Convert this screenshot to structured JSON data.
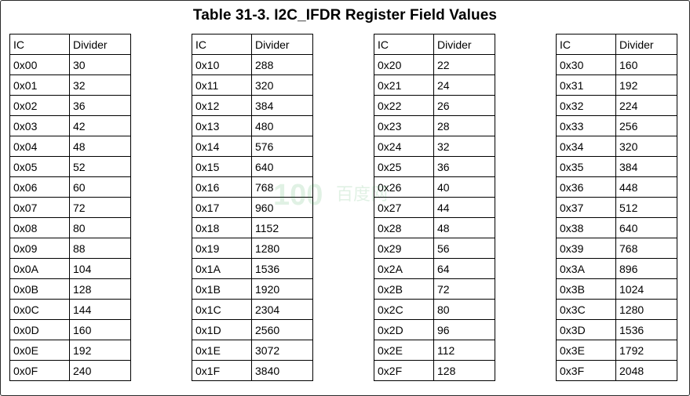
{
  "title": "Table 31-3.   I2C_IFDR Register Field Values",
  "headers": [
    "IC",
    "Divider"
  ],
  "columns": [
    {
      "rows": [
        [
          "0x00",
          "30"
        ],
        [
          "0x01",
          "32"
        ],
        [
          "0x02",
          "36"
        ],
        [
          "0x03",
          "42"
        ],
        [
          "0x04",
          "48"
        ],
        [
          "0x05",
          "52"
        ],
        [
          "0x06",
          "60"
        ],
        [
          "0x07",
          "72"
        ],
        [
          "0x08",
          "80"
        ],
        [
          "0x09",
          "88"
        ],
        [
          "0x0A",
          "104"
        ],
        [
          "0x0B",
          "128"
        ],
        [
          "0x0C",
          "144"
        ],
        [
          "0x0D",
          "160"
        ],
        [
          "0x0E",
          "192"
        ],
        [
          "0x0F",
          "240"
        ]
      ]
    },
    {
      "rows": [
        [
          "0x10",
          "288"
        ],
        [
          "0x11",
          "320"
        ],
        [
          "0x12",
          "384"
        ],
        [
          "0x13",
          "480"
        ],
        [
          "0x14",
          "576"
        ],
        [
          "0x15",
          "640"
        ],
        [
          "0x16",
          "768"
        ],
        [
          "0x17",
          "960"
        ],
        [
          "0x18",
          "1152"
        ],
        [
          "0x19",
          "1280"
        ],
        [
          "0x1A",
          "1536"
        ],
        [
          "0x1B",
          "1920"
        ],
        [
          "0x1C",
          "2304"
        ],
        [
          "0x1D",
          "2560"
        ],
        [
          "0x1E",
          "3072"
        ],
        [
          "0x1F",
          "3840"
        ]
      ]
    },
    {
      "rows": [
        [
          "0x20",
          "22"
        ],
        [
          "0x21",
          "24"
        ],
        [
          "0x22",
          "26"
        ],
        [
          "0x23",
          "28"
        ],
        [
          "0x24",
          "32"
        ],
        [
          "0x25",
          "36"
        ],
        [
          "0x26",
          "40"
        ],
        [
          "0x27",
          "44"
        ],
        [
          "0x28",
          "48"
        ],
        [
          "0x29",
          "56"
        ],
        [
          "0x2A",
          "64"
        ],
        [
          "0x2B",
          "72"
        ],
        [
          "0x2C",
          "80"
        ],
        [
          "0x2D",
          "96"
        ],
        [
          "0x2E",
          "112"
        ],
        [
          "0x2F",
          "128"
        ]
      ]
    },
    {
      "rows": [
        [
          "0x30",
          "160"
        ],
        [
          "0x31",
          "192"
        ],
        [
          "0x32",
          "224"
        ],
        [
          "0x33",
          "256"
        ],
        [
          "0x34",
          "320"
        ],
        [
          "0x35",
          "384"
        ],
        [
          "0x36",
          "448"
        ],
        [
          "0x37",
          "512"
        ],
        [
          "0x38",
          "640"
        ],
        [
          "0x39",
          "768"
        ],
        [
          "0x3A",
          "896"
        ],
        [
          "0x3B",
          "1024"
        ],
        [
          "0x3C",
          "1280"
        ],
        [
          "0x3D",
          "1536"
        ],
        [
          "0x3E",
          "1792"
        ],
        [
          "0x3F",
          "2048"
        ]
      ]
    }
  ],
  "watermark": {
    "logo_text": "100",
    "name_text": "百度网",
    "color": "#1a9a3a"
  }
}
